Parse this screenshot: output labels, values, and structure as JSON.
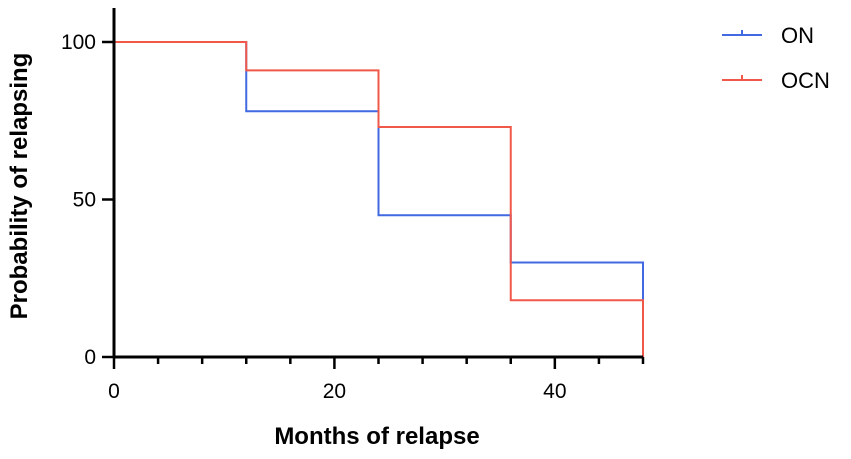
{
  "chart_data": {
    "type": "line",
    "step": true,
    "xlabel": "Months of relapse",
    "ylabel": "Probability of relapsing",
    "xlim": [
      0,
      48
    ],
    "ylim": [
      0,
      110
    ],
    "x_ticks": [
      0,
      20,
      40
    ],
    "y_ticks": [
      0,
      50,
      100
    ],
    "x_minor_step": 4,
    "grid": false,
    "legend_position": "top-right",
    "series": [
      {
        "name": "ON",
        "color": "#4169e1",
        "x": [
          0,
          12,
          24,
          36,
          48,
          48
        ],
        "y": [
          100,
          78,
          45,
          30,
          30,
          0
        ]
      },
      {
        "name": "OCN",
        "color": "#f0584a",
        "x": [
          0,
          12,
          24,
          36,
          48,
          48
        ],
        "y": [
          100,
          91,
          73,
          18,
          18,
          0
        ]
      }
    ]
  }
}
